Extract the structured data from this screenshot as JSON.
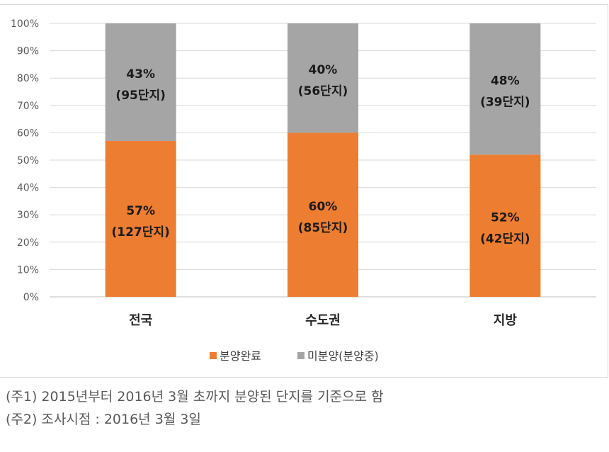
{
  "chart_data": {
    "type": "bar",
    "stacked": true,
    "categories": [
      "전국",
      "수도권",
      "지방"
    ],
    "ylim": [
      0,
      100
    ],
    "yticks": [
      "0%",
      "10%",
      "20%",
      "30%",
      "40%",
      "50%",
      "60%",
      "70%",
      "80%",
      "90%",
      "100%"
    ],
    "grid": true,
    "legend_position": "bottom",
    "series": [
      {
        "name": "분양완료",
        "color": "#ed7d31",
        "values": [
          57,
          60,
          52
        ],
        "labels": [
          {
            "pct": "57%",
            "count": "(127단지)"
          },
          {
            "pct": "60%",
            "count": "(85단지)"
          },
          {
            "pct": "52%",
            "count": "(42단지)"
          }
        ]
      },
      {
        "name": "미분양(분양중)",
        "color": "#a5a5a5",
        "values": [
          43,
          40,
          48
        ],
        "labels": [
          {
            "pct": "43%",
            "count": "(95단지)"
          },
          {
            "pct": "40%",
            "count": "(56단지)"
          },
          {
            "pct": "48%",
            "count": "(39단지)"
          }
        ]
      }
    ]
  },
  "notes": [
    "(주1) 2015년부터 2016년 3월 초까지 분양된 단지를 기준으로 함",
    "(주2) 조사시점 : 2016년 3월 3일"
  ]
}
